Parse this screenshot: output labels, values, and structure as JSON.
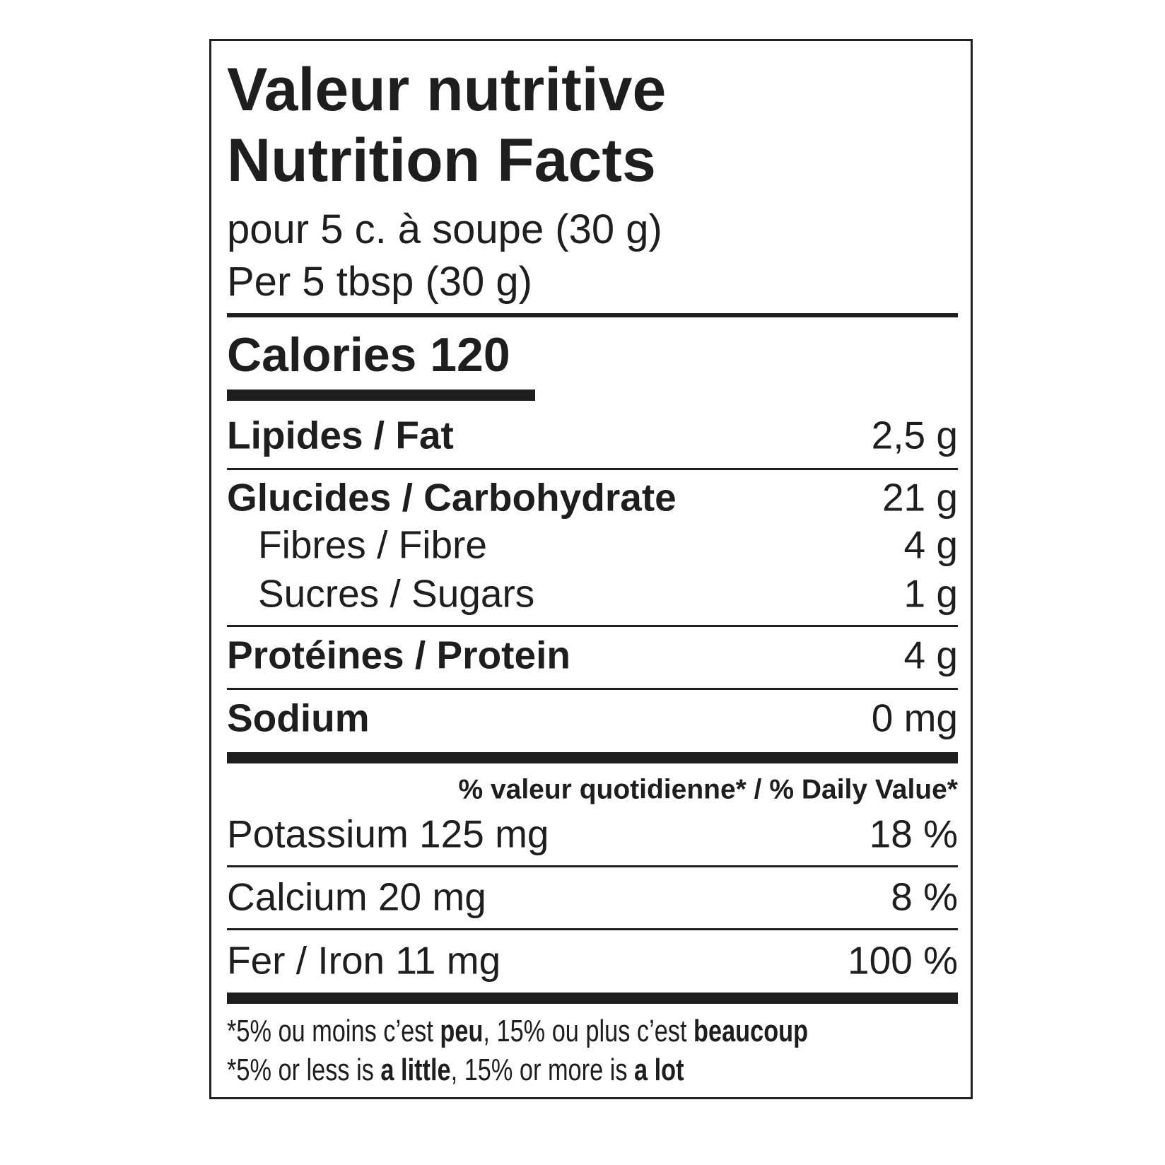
{
  "title_fr": "Valeur nutritive",
  "title_en": "Nutrition Facts",
  "serving_fr": "pour 5 c. à soupe (30 g)",
  "serving_en": "Per 5 tbsp (30 g)",
  "calories": "Calories 120",
  "nutrients": [
    {
      "label": "Lipides / Fat",
      "value": "2,5 g"
    },
    {
      "label": "Glucides / Carbohydrate",
      "value": "21 g"
    },
    {
      "label": "Fibres / Fibre",
      "value": "4 g"
    },
    {
      "label": "Sucres / Sugars",
      "value": "1 g"
    },
    {
      "label": "Protéines / Protein",
      "value": "4 g"
    },
    {
      "label": "Sodium",
      "value": "0 mg"
    }
  ],
  "dv_header": "% valeur quotidienne* / % Daily Value*",
  "minerals": [
    {
      "label": "Potassium 125 mg",
      "value": "18 %"
    },
    {
      "label": "Calcium 20 mg",
      "value": "8 %"
    },
    {
      "label": "Fer / Iron 11 mg",
      "value": "100 %"
    }
  ],
  "footnote_fr": {
    "a": "*5% ou moins c’est ",
    "b": "peu",
    "c": ", 15% ou plus c’est ",
    "d": "beaucoup"
  },
  "footnote_en": {
    "a": "*5% or less is ",
    "b": "a little",
    "c": ", 15% or more is ",
    "d": "a lot"
  }
}
